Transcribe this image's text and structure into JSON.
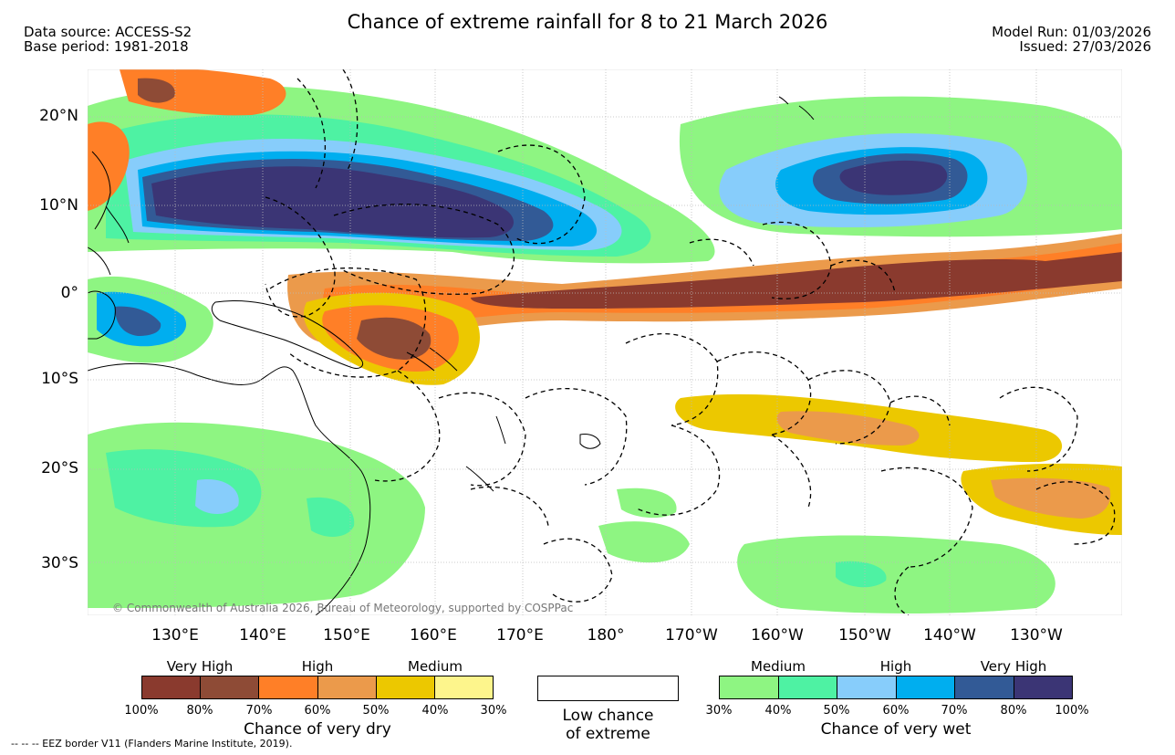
{
  "title": "Chance of extreme rainfall for 8 to 21 March 2026",
  "data_source": "Data source: ACCESS-S2",
  "base_period": "Base period: 1981-2018",
  "model_run": "Model Run: 01/03/2026",
  "issued": "Issued: 27/03/2026",
  "map": {
    "lat_labels": [
      "20°N",
      "10°N",
      "0°",
      "10°S",
      "20°S",
      "30°S"
    ],
    "lon_labels": [
      "130°E",
      "140°E",
      "150°E",
      "160°E",
      "170°E",
      "180°",
      "170°W",
      "160°W",
      "150°W",
      "140°W",
      "130°W"
    ],
    "copyright": "© Commonwealth of Australia 2026, Bureau of Meteorology, supported by COSPPac",
    "colors": {
      "ocean": "#ffffff",
      "land_outline": "#000000",
      "grid": "#bbbbbb",
      "eez_border": "#000000"
    }
  },
  "legend": {
    "dry": {
      "tiers": [
        "Very High",
        "High",
        "Medium"
      ],
      "colors": [
        "#8a3a2e",
        "#8e4b36",
        "#ff7f27",
        "#eb9a4b",
        "#ecc800",
        "#fdf58c"
      ],
      "ticks": [
        "100%",
        "80%",
        "70%",
        "60%",
        "50%",
        "40%",
        "30%"
      ],
      "caption": "Chance of very dry"
    },
    "low": {
      "label_line1": "Low chance",
      "label_line2": "of extreme",
      "color": "#ffffff"
    },
    "wet": {
      "tiers": [
        "Medium",
        "High",
        "Very High"
      ],
      "colors": [
        "#8ef582",
        "#4ef2a3",
        "#87cdfb",
        "#00aeef",
        "#325a96",
        "#3b3575"
      ],
      "ticks": [
        "30%",
        "40%",
        "50%",
        "60%",
        "70%",
        "80%",
        "100%"
      ],
      "caption": "Chance of very wet"
    }
  },
  "footnote": "-- -- -- EEZ border V11 (Flanders Marine Institute, 2019)."
}
